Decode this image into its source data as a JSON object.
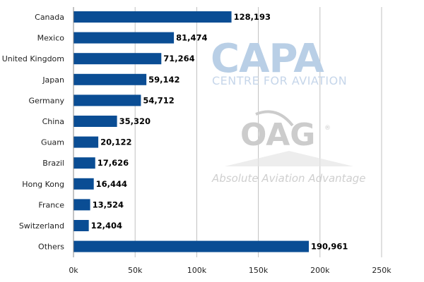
{
  "chart_data": {
    "type": "bar",
    "orientation": "horizontal",
    "categories": [
      "Canada",
      "Mexico",
      "United Kingdom",
      "Japan",
      "Germany",
      "China",
      "Guam",
      "Brazil",
      "Hong Kong",
      "France",
      "Switzerland",
      "Others"
    ],
    "values": [
      128193,
      81474,
      71264,
      59142,
      54712,
      35320,
      20122,
      17626,
      16444,
      13524,
      12404,
      190961
    ],
    "data_labels": [
      "128,193",
      "81,474",
      "71,264",
      "59,142",
      "54,712",
      "35,320",
      "20,122",
      "17,626",
      "16,444",
      "13,524",
      "12,404",
      "190,961"
    ],
    "xlim": [
      0,
      250000
    ],
    "xticks": [
      0,
      50000,
      100000,
      150000,
      200000,
      250000
    ],
    "xtick_labels": [
      "0k",
      "50k",
      "100k",
      "150k",
      "200k",
      "250k"
    ],
    "grid": "vertical",
    "bar_color": "#0a4d94",
    "title": "",
    "xlabel": "",
    "ylabel": ""
  },
  "watermarks": {
    "capa": "CAPA",
    "capa_sub": "CENTRE FOR AVIATION",
    "oag": "OAG",
    "oag_reg": "®",
    "oag_sub": "Absolute Aviation Advantage"
  },
  "colors": {
    "capa": "#b9cfe6",
    "oag": "#cccccc",
    "grid": "#c0c0c0"
  }
}
